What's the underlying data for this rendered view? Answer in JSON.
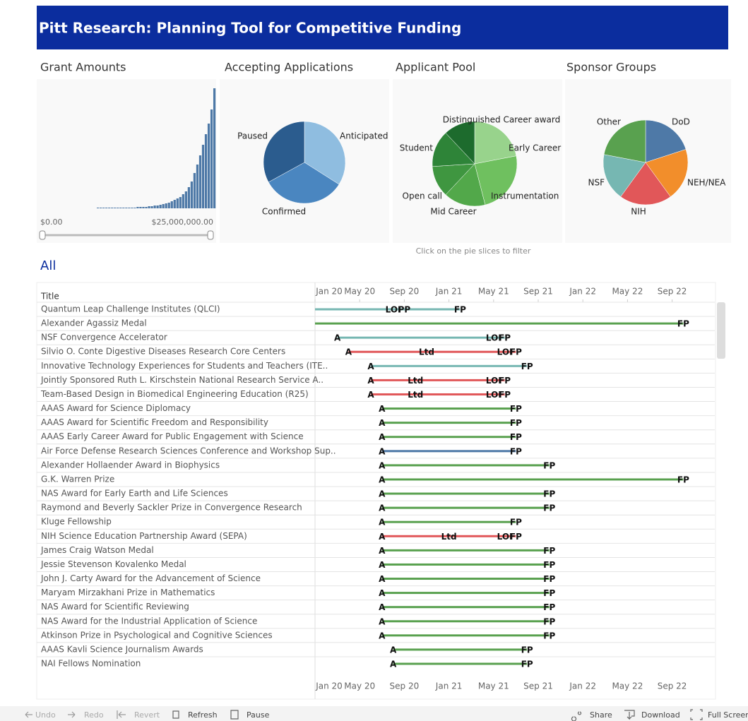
{
  "header": {
    "title": "Pitt Research: Planning Tool for Competitive Funding"
  },
  "filter_hint": "Click on the pie slices to filter",
  "chart_data": [
    {
      "type": "bar",
      "title": "Grant Amounts",
      "color": "#4e79a7",
      "range_labels": [
        "$0.00",
        "$25,000,000.00"
      ],
      "values": [
        1,
        1,
        1,
        1,
        1,
        1,
        1,
        1,
        1,
        1,
        1,
        1,
        1,
        1,
        2,
        2,
        2,
        2,
        3,
        3,
        4,
        4,
        5,
        6,
        7,
        8,
        10,
        12,
        14,
        16,
        20,
        24,
        30,
        38,
        50,
        62,
        75,
        90,
        105,
        120,
        140,
        170
      ]
    },
    {
      "type": "pie",
      "title": "Accepting Applications",
      "categories": [
        "Anticipated",
        "Confirmed",
        "Paused"
      ],
      "values": [
        34,
        33,
        33
      ],
      "colors": [
        "#8fbde0",
        "#4a86c0",
        "#2b5c8e"
      ]
    },
    {
      "type": "pie",
      "title": "Applicant Pool",
      "categories": [
        "Early Career",
        "Instrumentation",
        "Mid Career",
        "Open call",
        "Student",
        "Distinguished Career award"
      ],
      "values": [
        22,
        24,
        16,
        12,
        14,
        12
      ],
      "colors": [
        "#98d38c",
        "#6fc05f",
        "#52a84a",
        "#3f9640",
        "#2e8438",
        "#1d6b2d"
      ]
    },
    {
      "type": "pie",
      "title": "Sponsor Groups",
      "categories": [
        "DoD",
        "NEH/NEA",
        "NIH",
        "NSF",
        "Other"
      ],
      "values": [
        20,
        20,
        20,
        18,
        22
      ],
      "colors": [
        "#4e79a7",
        "#f28e2b",
        "#e15759",
        "#76b7b2",
        "#59a14f"
      ]
    },
    {
      "type": "gantt",
      "title": "All",
      "column_header": "Title",
      "xlim": [
        "2020-01",
        "2022-12"
      ],
      "xticks": [
        {
          "value": "2020-01",
          "label": "Jan 20"
        },
        {
          "value": "2020-05",
          "label": "May 20"
        },
        {
          "value": "2020-09",
          "label": "Sep 20"
        },
        {
          "value": "2021-01",
          "label": "Jan 21"
        },
        {
          "value": "2021-05",
          "label": "May 21"
        },
        {
          "value": "2021-09",
          "label": "Sep 21"
        },
        {
          "value": "2022-01",
          "label": "Jan 22"
        },
        {
          "value": "2022-05",
          "label": "May 22"
        },
        {
          "value": "2022-09",
          "label": "Sep 22"
        }
      ],
      "rows": [
        {
          "title": "Quantum Leap Challenge Institutes  (QLCI)",
          "color": "#76b7b2",
          "start": "2020-01",
          "milestones": [
            {
              "label": "LOI",
              "date": "2020-08"
            },
            {
              "label": "PP",
              "date": "2020-09"
            },
            {
              "label": "FP",
              "date": "2021-02"
            }
          ]
        },
        {
          "title": "Alexander Agassiz Medal",
          "color": "#59a14f",
          "start": "2020-01",
          "milestones": [
            {
              "label": "FP",
              "date": "2022-10"
            }
          ]
        },
        {
          "title": "NSF Convergence Accelerator",
          "color": "#76b7b2",
          "start": "2020-03",
          "start_label": "A",
          "milestones": [
            {
              "label": "LOI",
              "date": "2021-05"
            },
            {
              "label": "FP",
              "date": "2021-06"
            }
          ]
        },
        {
          "title": "Silvio O. Conte Digestive Diseases Research Core Centers",
          "color": "#e15759",
          "start": "2020-04",
          "start_label": "A",
          "milestones": [
            {
              "label": "Ltd",
              "date": "2020-11"
            },
            {
              "label": "LOI",
              "date": "2021-06"
            },
            {
              "label": "FP",
              "date": "2021-07"
            }
          ]
        },
        {
          "title": "Innovative Technology Experiences for Students and Teachers (ITE..",
          "color": "#76b7b2",
          "start": "2020-06",
          "start_label": "A",
          "milestones": [
            {
              "label": "FP",
              "date": "2021-08"
            }
          ]
        },
        {
          "title": "Jointly Sponsored Ruth L. Kirschstein National Research Service A..",
          "color": "#e15759",
          "start": "2020-06",
          "start_label": "A",
          "milestones": [
            {
              "label": "Ltd",
              "date": "2020-10"
            },
            {
              "label": "LOI",
              "date": "2021-05"
            },
            {
              "label": "FP",
              "date": "2021-06"
            }
          ]
        },
        {
          "title": "Team-Based Design in Biomedical Engineering Education (R25)",
          "color": "#e15759",
          "start": "2020-06",
          "start_label": "A",
          "milestones": [
            {
              "label": "Ltd",
              "date": "2020-10"
            },
            {
              "label": "LOI",
              "date": "2021-05"
            },
            {
              "label": "FP",
              "date": "2021-06"
            }
          ]
        },
        {
          "title": "AAAS Award for Science Diplomacy",
          "color": "#59a14f",
          "start": "2020-07",
          "start_label": "A",
          "milestones": [
            {
              "label": "FP",
              "date": "2021-07"
            }
          ]
        },
        {
          "title": "AAAS Award for Scientific Freedom and Responsibility",
          "color": "#59a14f",
          "start": "2020-07",
          "start_label": "A",
          "milestones": [
            {
              "label": "FP",
              "date": "2021-07"
            }
          ]
        },
        {
          "title": "AAAS Early Career Award for Public Engagement with Science",
          "color": "#59a14f",
          "start": "2020-07",
          "start_label": "A",
          "milestones": [
            {
              "label": "FP",
              "date": "2021-07"
            }
          ]
        },
        {
          "title": "Air Force Defense Research Sciences Conference and Workshop Sup..",
          "color": "#4e79a7",
          "start": "2020-07",
          "start_label": "A",
          "milestones": [
            {
              "label": "FP",
              "date": "2021-07"
            }
          ]
        },
        {
          "title": "Alexander Hollaender Award in Biophysics",
          "color": "#59a14f",
          "start": "2020-07",
          "start_label": "A",
          "milestones": [
            {
              "label": "FP",
              "date": "2021-10"
            }
          ]
        },
        {
          "title": "G.K. Warren Prize",
          "color": "#59a14f",
          "start": "2020-07",
          "start_label": "A",
          "milestones": [
            {
              "label": "FP",
              "date": "2022-10"
            }
          ]
        },
        {
          "title": "NAS Award for Early Earth and Life Sciences",
          "color": "#59a14f",
          "start": "2020-07",
          "start_label": "A",
          "milestones": [
            {
              "label": "FP",
              "date": "2021-10"
            }
          ]
        },
        {
          "title": "Raymond and Beverly Sackler Prize in Convergence Research",
          "color": "#59a14f",
          "start": "2020-07",
          "start_label": "A",
          "milestones": [
            {
              "label": "FP",
              "date": "2021-10"
            }
          ]
        },
        {
          "title": "Kluge Fellowship",
          "color": "#59a14f",
          "start": "2020-07",
          "start_label": "A",
          "milestones": [
            {
              "label": "FP",
              "date": "2021-07"
            }
          ]
        },
        {
          "title": "NIH Science Education Partnership Award (SEPA)",
          "color": "#e15759",
          "start": "2020-07",
          "start_label": "A",
          "milestones": [
            {
              "label": "Ltd",
              "date": "2021-01"
            },
            {
              "label": "LOI",
              "date": "2021-06"
            },
            {
              "label": "FP",
              "date": "2021-07"
            }
          ]
        },
        {
          "title": "James Craig Watson Medal",
          "color": "#59a14f",
          "start": "2020-07",
          "start_label": "A",
          "milestones": [
            {
              "label": "FP",
              "date": "2021-10"
            }
          ]
        },
        {
          "title": "Jessie Stevenson Kovalenko Medal",
          "color": "#59a14f",
          "start": "2020-07",
          "start_label": "A",
          "milestones": [
            {
              "label": "FP",
              "date": "2021-10"
            }
          ]
        },
        {
          "title": "John J. Carty Award for the Advancement of Science",
          "color": "#59a14f",
          "start": "2020-07",
          "start_label": "A",
          "milestones": [
            {
              "label": "FP",
              "date": "2021-10"
            }
          ]
        },
        {
          "title": "Maryam Mirzakhani Prize in Mathematics",
          "color": "#59a14f",
          "start": "2020-07",
          "start_label": "A",
          "milestones": [
            {
              "label": "FP",
              "date": "2021-10"
            }
          ]
        },
        {
          "title": "NAS Award for Scientific Reviewing",
          "color": "#59a14f",
          "start": "2020-07",
          "start_label": "A",
          "milestones": [
            {
              "label": "FP",
              "date": "2021-10"
            }
          ]
        },
        {
          "title": "NAS Award for the Industrial Application of Science",
          "color": "#59a14f",
          "start": "2020-07",
          "start_label": "A",
          "milestones": [
            {
              "label": "FP",
              "date": "2021-10"
            }
          ]
        },
        {
          "title": "Atkinson Prize in Psychological and Cognitive Sciences",
          "color": "#59a14f",
          "start": "2020-07",
          "start_label": "A",
          "milestones": [
            {
              "label": "FP",
              "date": "2021-10"
            }
          ]
        },
        {
          "title": "AAAS Kavli Science Journalism Awards",
          "color": "#59a14f",
          "start": "2020-08",
          "start_label": "A",
          "milestones": [
            {
              "label": "FP",
              "date": "2021-08"
            }
          ]
        },
        {
          "title": "NAI Fellows Nomination",
          "color": "#59a14f",
          "start": "2020-08",
          "start_label": "A",
          "milestones": [
            {
              "label": "FP",
              "date": "2021-08"
            }
          ]
        }
      ]
    }
  ],
  "toolbar": [
    "Undo",
    "Redo",
    "Revert",
    "Refresh",
    "Pause",
    "Share",
    "Download",
    "Full Screen"
  ]
}
